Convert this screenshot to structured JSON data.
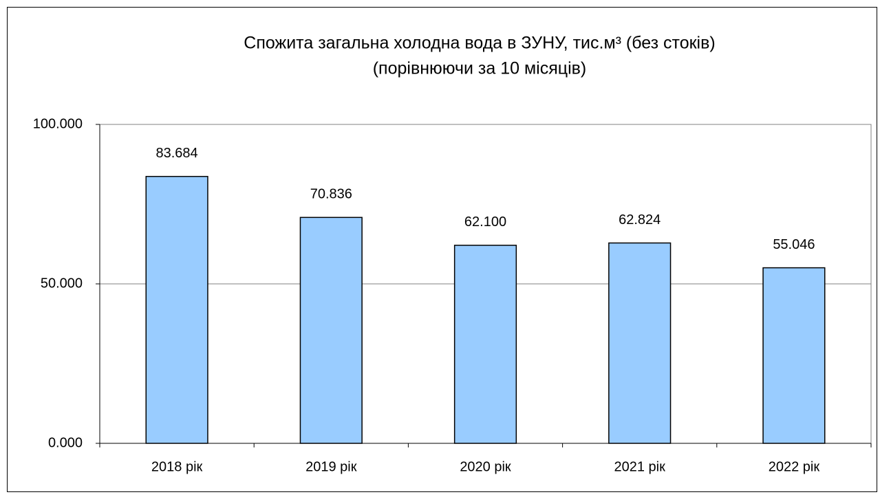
{
  "chart_data": {
    "type": "bar",
    "title": "Спожита загальна холодна вода в ЗУНУ, тис.м³ (без стоків)",
    "subtitle": "(порівнюючи за 10 місяців)",
    "categories": [
      "2018 рік",
      "2019 рік",
      "2020 рік",
      "2021 рік",
      "2022 рік"
    ],
    "values": [
      83.684,
      70.836,
      62.1,
      62.824,
      55.046
    ],
    "value_labels": [
      "83.684",
      "70.836",
      "62.100",
      "62.824",
      "55.046"
    ],
    "color": "#99ccff",
    "ylim": [
      0,
      100
    ],
    "yticks": [
      {
        "value": 0,
        "label": "0.000"
      },
      {
        "value": 50,
        "label": "50.000"
      },
      {
        "value": 100,
        "label": "100.000"
      }
    ],
    "grid": true
  }
}
